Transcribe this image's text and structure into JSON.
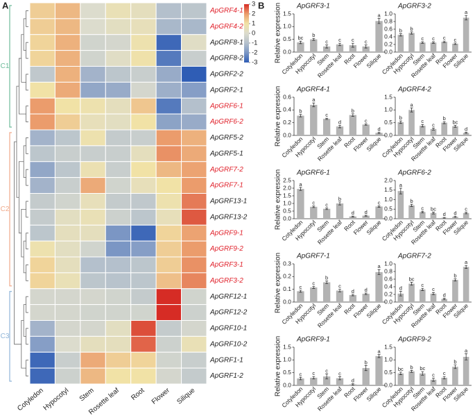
{
  "panels": [
    "A",
    "B"
  ],
  "chart_data": [
    {
      "type": "heatmap",
      "x": [
        "Cotyledon",
        "Hypocotyl",
        "Stem",
        "Rosette leaf",
        "Root",
        "Flower",
        "Silique"
      ],
      "y": [
        "ApGRF4-1",
        "ApGRF4-2",
        "ApGRF8-1",
        "ApGRF8-2",
        "ApGRF2-2",
        "ApGRF2-1",
        "ApGRF6-1",
        "ApGRF6-2",
        "ApGRF5-2",
        "ApGRF5-1",
        "ApGRF7-2",
        "ApGRF7-1",
        "ApGRF13-1",
        "ApGRF13-2",
        "ApGRF9-1",
        "ApGRF9-2",
        "ApGRF3-1",
        "ApGRF3-2",
        "ApGRF12-1",
        "ApGRF12-2",
        "ApGRF10-1",
        "ApGRF10-2",
        "ApGRF1-1",
        "ApGRF1-2"
      ],
      "row_label_colors": [
        "#e0202a",
        "#e0202a",
        "#222",
        "#222",
        "#222",
        "#222",
        "#e0202a",
        "#e0202a",
        "#222",
        "#222",
        "#e0202a",
        "#e0202a",
        "#222",
        "#222",
        "#e0202a",
        "#e0202a",
        "#e0202a",
        "#e0202a",
        "#222",
        "#222",
        "#222",
        "#222",
        "#222",
        "#222"
      ],
      "values": [
        [
          1.3,
          1.6,
          0,
          0.6,
          0.4,
          -1,
          -0.8
        ],
        [
          1.3,
          1.6,
          0,
          0.3,
          0.5,
          -1.2,
          -1.2
        ],
        [
          1.2,
          1.7,
          -0.3,
          -0.2,
          0.8,
          -2.8,
          0.2
        ],
        [
          1.2,
          1.7,
          -0.3,
          0.2,
          0.9,
          -2.5,
          -0.5
        ],
        [
          -0.7,
          1.7,
          -1.3,
          -0.8,
          -0.5,
          -1.5,
          -3
        ],
        [
          1,
          1.8,
          -1.6,
          -1.5,
          -0.2,
          -1.4,
          -1.8
        ],
        [
          2,
          1,
          0.8,
          0.4,
          1.4,
          -2.5,
          -1
        ],
        [
          2,
          1.3,
          0.5,
          0.3,
          1,
          -1.7,
          -1.5
        ],
        [
          -1.3,
          -0.8,
          0.8,
          -0.6,
          -0.5,
          2,
          1.7
        ],
        [
          -0.8,
          -0.5,
          -0.5,
          -0.5,
          0.4,
          2.1,
          1.8
        ],
        [
          -1.6,
          -0.8,
          0.7,
          -0.5,
          1,
          1.6,
          1.9
        ],
        [
          -1.3,
          -0.5,
          1.8,
          -0.3,
          0.5,
          1,
          2
        ],
        [
          -0.6,
          -0.3,
          0.5,
          -0.6,
          -0.7,
          0.8,
          2.3
        ],
        [
          -0.6,
          0.3,
          0.6,
          -0.4,
          -0.8,
          0.5,
          2.6
        ],
        [
          -0.8,
          0.4,
          0.4,
          -2,
          -2.8,
          1.2,
          1.9
        ],
        [
          0.8,
          0.3,
          -0.3,
          -2,
          -1.8,
          1.3,
          2
        ],
        [
          1.2,
          0.4,
          -1,
          -1,
          -0.8,
          1.3,
          2.1
        ],
        [
          1.2,
          0.6,
          -0.8,
          -0.9,
          -0.8,
          1.5,
          2.2
        ],
        [
          -0.2,
          -0.2,
          -0.2,
          -0.3,
          -0.6,
          3,
          -0.3
        ],
        [
          -0.2,
          -0.2,
          -0.3,
          -0.3,
          -0.3,
          3,
          -0.4
        ],
        [
          -1.3,
          -0.2,
          -0.2,
          0.3,
          2.7,
          -0.6,
          -0.2
        ],
        [
          -1.8,
          0,
          0.4,
          0.4,
          2.5,
          -0.4,
          0.6
        ],
        [
          -2.8,
          -0.5,
          1.8,
          1.3,
          1.2,
          -0.3,
          -0.5
        ],
        [
          -2.8,
          -0.4,
          1.6,
          1,
          1,
          -0.2,
          -0.6
        ]
      ],
      "zlim": [
        -3,
        3
      ],
      "colors": [
        "#2f5db5",
        "#7b96c4",
        "#b4c0cc",
        "#dcdccd",
        "#f1e2a6",
        "#eb9c6c",
        "#d62c25"
      ],
      "colorbar_ticks": [
        3,
        2,
        1,
        0,
        -1,
        -2,
        -3
      ],
      "clusters": [
        {
          "label": "C1",
          "color": "#6dbb9a"
        },
        {
          "label": "C2",
          "color": "#f0a98a"
        },
        {
          "label": "C3",
          "color": "#8fb4d8"
        }
      ]
    },
    {
      "type": "bar",
      "title": "ApGRF3-1",
      "ylabel": "Relative expression",
      "categories": [
        "Cotyledon",
        "Hypocotyl",
        "Stem",
        "Rosette leaf",
        "Root",
        "Flower",
        "Silique"
      ],
      "values": [
        0.38,
        0.5,
        0.22,
        0.3,
        0.27,
        0.22,
        1.22
      ],
      "errors": [
        0.05,
        0.04,
        0.06,
        0.05,
        0.08,
        0.06,
        0.1
      ],
      "annotations": [
        "bc",
        "b",
        "c",
        "c",
        "c",
        "c",
        "a"
      ],
      "color": "#b3b3b3",
      "ylim": [
        0,
        1.5
      ],
      "yticks": [
        {
          "value": 0,
          "label": "0.0"
        },
        0.5,
        {
          "value": 1,
          "label": "1.0"
        },
        1.5
      ]
    },
    {
      "type": "bar",
      "title": "ApGRF3-2",
      "categories": [
        "Cotyledon",
        "Hypocotyl",
        "Stem",
        "Rosette leaf",
        "Root",
        "Flower",
        "Silique"
      ],
      "values": [
        0.45,
        0.5,
        0.25,
        0.25,
        0.27,
        0.22,
        0.9
      ],
      "errors": [
        0.03,
        0.03,
        0.02,
        0.02,
        0.02,
        0.02,
        0.06
      ],
      "annotations": [
        "b",
        "b",
        "c",
        "c",
        "c",
        "c",
        "a"
      ],
      "color": "#b3b3b3",
      "ylim": [
        0,
        1
      ],
      "yticks": [
        {
          "value": 0,
          "label": "0.0"
        },
        0.2,
        0.4,
        0.6,
        0.8,
        {
          "value": 1,
          "label": "1.0"
        }
      ]
    },
    {
      "type": "bar",
      "title": "ApGRF4-1",
      "ylabel": "Relative expression",
      "categories": [
        "Cotyledon",
        "Hypocotyl",
        "Stem",
        "Rosette leaf",
        "Root",
        "Flower",
        "Silique"
      ],
      "values": [
        0.31,
        0.48,
        0.26,
        0.14,
        0.32,
        0.17,
        0.04
      ],
      "errors": [
        0.02,
        0.03,
        0.01,
        0.02,
        0.02,
        0.01,
        0.01
      ],
      "annotations": [
        "b",
        "a",
        "c",
        "d",
        "b",
        "c",
        "d"
      ],
      "color": "#b3b3b3",
      "ylim": [
        0,
        0.6
      ],
      "yticks": [
        {
          "value": 0,
          "label": "0.0"
        },
        0.2,
        0.4,
        0.6
      ]
    },
    {
      "type": "bar",
      "title": "ApGRF4-2",
      "categories": [
        "Cotyledon",
        "Hypocotyl",
        "Stem",
        "Rosette leaf",
        "Root",
        "Flower",
        "Silique"
      ],
      "values": [
        0.52,
        1,
        0.38,
        0.25,
        0.5,
        0.36,
        0.1
      ],
      "errors": [
        0.05,
        0.08,
        0.05,
        0.04,
        0.04,
        0.04,
        0.02
      ],
      "annotations": [
        "b",
        "a",
        "c",
        "c",
        "b",
        "bc",
        "d"
      ],
      "color": "#b3b3b3",
      "ylim": [
        0,
        1.5
      ],
      "yticks": [
        {
          "value": 0,
          "label": "0.0"
        },
        0.5,
        {
          "value": 1,
          "label": "1.0"
        },
        1.5
      ]
    },
    {
      "type": "bar",
      "title": "ApGRF6-1",
      "ylabel": "Relative expression",
      "categories": [
        "Cotyledon",
        "Hypocotyl",
        "Stem",
        "Rosette leaf",
        "Root",
        "Flower",
        "Silique"
      ],
      "values": [
        1.95,
        0.78,
        0.65,
        1,
        0.15,
        0.2,
        0.8
      ],
      "errors": [
        0.1,
        0.05,
        0.05,
        0.1,
        0.03,
        0.03,
        0.05
      ],
      "annotations": [
        "a",
        "c",
        "c",
        "b",
        "d",
        "d",
        "c"
      ],
      "color": "#b3b3b3",
      "ylim": [
        0,
        2.5
      ],
      "yticks": [
        {
          "value": 0,
          "label": "0.0"
        },
        0.5,
        {
          "value": 1,
          "label": "1.0"
        },
        1.5,
        {
          "value": 2,
          "label": "2.0"
        },
        2.5
      ]
    },
    {
      "type": "bar",
      "title": "ApGRF6-2",
      "categories": [
        "Cotyledon",
        "Hypocotyl",
        "Stem",
        "Rosette leaf",
        "Root",
        "Flower",
        "Silique"
      ],
      "values": [
        1.45,
        0.7,
        0.35,
        0.3,
        0.05,
        0.1,
        0.3
      ],
      "errors": [
        0.15,
        0.06,
        0.04,
        0.05,
        0.02,
        0.03,
        0.04
      ],
      "annotations": [
        "a",
        "b",
        "c",
        "bc",
        "d",
        "d",
        "c"
      ],
      "color": "#b3b3b3",
      "ylim": [
        0,
        2
      ],
      "yticks": [
        {
          "value": 0,
          "label": "0.0"
        },
        0.5,
        {
          "value": 1,
          "label": "1.0"
        },
        1.5,
        {
          "value": 2,
          "label": "2.0"
        }
      ]
    },
    {
      "type": "bar",
      "title": "ApGRF7-1",
      "ylabel": "Relative expression",
      "categories": [
        "Cotyledon",
        "Hypocotyl",
        "Stem",
        "Rosette leaf",
        "Root",
        "Flower",
        "Silique"
      ],
      "values": [
        0.085,
        0.115,
        0.155,
        0.09,
        0.055,
        0.065,
        0.235
      ],
      "errors": [
        0.008,
        0.008,
        0.01,
        0.01,
        0.006,
        0.006,
        0.02
      ],
      "annotations": [
        "c",
        "c",
        "b",
        "c",
        "d",
        "d",
        "a"
      ],
      "color": "#b3b3b3",
      "ylim": [
        0,
        0.3
      ],
      "yticks": [
        {
          "value": 0,
          "label": "0.0"
        },
        0.1,
        0.2,
        0.3
      ]
    },
    {
      "type": "bar",
      "title": "ApGRF7-2",
      "categories": [
        "Cotyledon",
        "Hypocotyl",
        "Stem",
        "Rosette leaf",
        "Root",
        "Flower",
        "Silique"
      ],
      "values": [
        0.22,
        0.48,
        0.33,
        0.22,
        0.08,
        0.58,
        0.92
      ],
      "errors": [
        0.06,
        0.04,
        0.03,
        0.03,
        0.02,
        0.03,
        0.04
      ],
      "annotations": [
        "d",
        "bc",
        "c",
        "c",
        "d",
        "b",
        "a"
      ],
      "color": "#b3b3b3",
      "ylim": [
        0,
        1
      ],
      "yticks": [
        {
          "value": 0,
          "label": "0.0"
        },
        0.2,
        0.4,
        0.6,
        0.8,
        {
          "value": 1,
          "label": "1.0"
        }
      ]
    },
    {
      "type": "bar",
      "title": "ApGRF9-1",
      "ylabel": "Relative expression",
      "categories": [
        "Cotyledon",
        "Hypocotyl",
        "Stem",
        "Rosette leaf",
        "Root",
        "Flower",
        "Silique"
      ],
      "values": [
        0.27,
        0.3,
        0.35,
        0.28,
        0.04,
        0.68,
        1.15
      ],
      "errors": [
        0.05,
        0.05,
        0.1,
        0.06,
        0.03,
        0.1,
        0.06
      ],
      "annotations": [
        "c",
        "c",
        "c",
        "c",
        "d",
        "b",
        "a"
      ],
      "color": "#b3b3b3",
      "ylim": [
        0,
        1.5
      ],
      "yticks": [
        {
          "value": 0,
          "label": "0.0"
        },
        0.5,
        {
          "value": 1,
          "label": "1.0"
        },
        1.5
      ]
    },
    {
      "type": "bar",
      "title": "ApGRF9-2",
      "categories": [
        "Cotyledon",
        "Hypocotyl",
        "Stem",
        "Rosette leaf",
        "Root",
        "Flower",
        "Silique"
      ],
      "values": [
        0.47,
        0.55,
        0.47,
        0.22,
        0.3,
        0.73,
        1.12
      ],
      "errors": [
        0.05,
        0.04,
        0.07,
        0.06,
        0.05,
        0.07,
        0.12
      ],
      "annotations": [
        "bc",
        "b",
        "bc",
        "c",
        "c",
        "b",
        "a"
      ],
      "color": "#b3b3b3",
      "ylim": [
        0,
        1.5
      ],
      "yticks": [
        {
          "value": 0,
          "label": "0.0"
        },
        0.5,
        {
          "value": 1,
          "label": "1.0"
        },
        1.5
      ]
    }
  ]
}
